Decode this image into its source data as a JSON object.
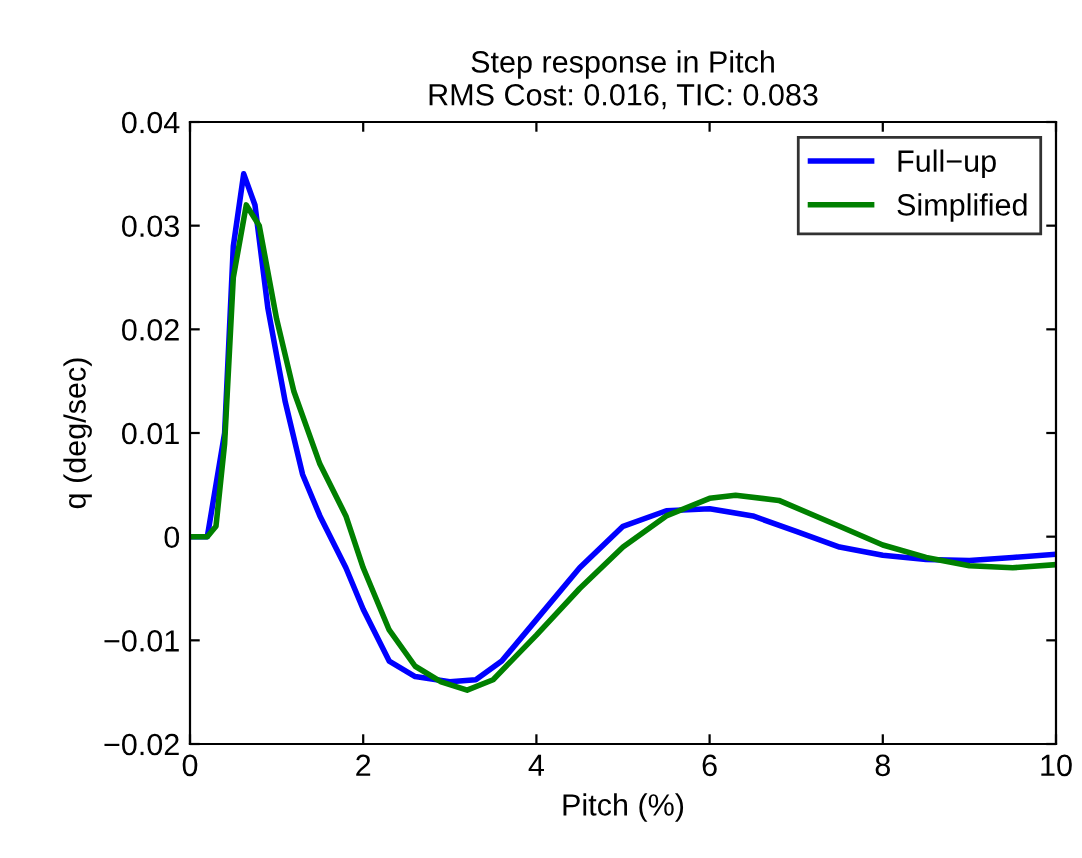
{
  "chart_data": {
    "type": "line",
    "title": "Step response in Pitch\nRMS Cost: 0.016, TIC: 0.083",
    "xlabel": "Pitch (%)",
    "ylabel": "q (deg/sec)",
    "xlim": [
      0,
      10
    ],
    "ylim": [
      -0.02,
      0.04
    ],
    "xticks": [
      0,
      2,
      4,
      6,
      8,
      10
    ],
    "yticks": [
      {
        "value": -0.02,
        "label": "−0.02"
      },
      {
        "value": -0.01,
        "label": "−0.01"
      },
      0,
      0.01,
      0.02,
      0.03,
      0.04
    ],
    "legend": "top right",
    "grid": false,
    "line_style": "solid",
    "marker": "none",
    "series": [
      {
        "name": "Full−up",
        "color": "#0000ff",
        "x": [
          0,
          0.2,
          0.4,
          0.5,
          0.62,
          0.75,
          0.9,
          1.1,
          1.3,
          1.5,
          1.8,
          2.0,
          2.3,
          2.6,
          3.0,
          3.3,
          3.6,
          4.0,
          4.5,
          5.0,
          5.5,
          6.0,
          6.5,
          7.0,
          7.5,
          8.0,
          8.5,
          9.0,
          9.5,
          10
        ],
        "values": [
          0,
          0,
          0.01,
          0.028,
          0.035,
          0.032,
          0.022,
          0.013,
          0.006,
          0.002,
          -0.003,
          -0.007,
          -0.012,
          -0.0135,
          -0.014,
          -0.0138,
          -0.012,
          -0.008,
          -0.003,
          0.001,
          0.0025,
          0.0027,
          0.002,
          0.0005,
          -0.001,
          -0.0018,
          -0.0022,
          -0.0023,
          -0.002,
          -0.0017
        ]
      },
      {
        "name": "Simplified",
        "color": "#008000",
        "x": [
          0,
          0.2,
          0.3,
          0.4,
          0.5,
          0.65,
          0.8,
          1.0,
          1.2,
          1.5,
          1.8,
          2.0,
          2.3,
          2.6,
          2.9,
          3.2,
          3.5,
          4.0,
          4.5,
          5.0,
          5.5,
          6.0,
          6.3,
          6.8,
          7.5,
          8.0,
          8.5,
          9.0,
          9.5,
          10
        ],
        "values": [
          0,
          0,
          0.001,
          0.009,
          0.025,
          0.032,
          0.03,
          0.021,
          0.014,
          0.007,
          0.002,
          -0.003,
          -0.009,
          -0.0125,
          -0.014,
          -0.0148,
          -0.0138,
          -0.0095,
          -0.005,
          -0.001,
          0.002,
          0.0037,
          0.004,
          0.0035,
          0.001,
          -0.0008,
          -0.002,
          -0.0028,
          -0.003,
          -0.0027
        ]
      }
    ]
  }
}
